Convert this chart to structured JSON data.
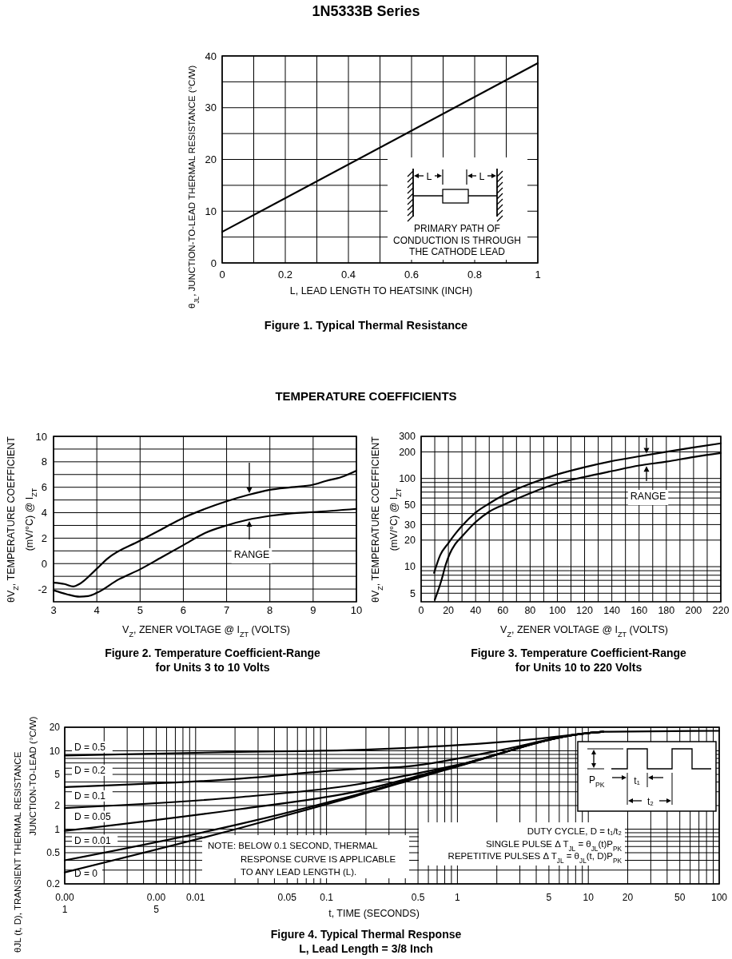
{
  "chart_data": [
    {
      "type": "line",
      "title": "1N5333B Series",
      "subtitle": "Figure 1. Typical Thermal Resistance",
      "xlabel": "L, LEAD LENGTH TO HEATSINK (INCH)",
      "ylabel": "θ$_{JL}$, JUNCTION-TO-LEAD THERMAL RESISTANCE (°C/W)",
      "xlim": [
        0,
        1
      ],
      "ylim": [
        0,
        40
      ],
      "xticks": [
        0,
        {
          "value": 0.1,
          "label": null
        },
        0.2,
        {
          "value": 0.3,
          "label": null
        },
        0.4,
        {
          "value": 0.5,
          "label": null
        },
        0.6,
        {
          "value": 0.7,
          "label": null
        },
        0.8,
        {
          "value": 0.9,
          "label": null
        },
        1
      ],
      "yticks": [
        0,
        {
          "value": 5,
          "label": null
        },
        10,
        {
          "value": 15,
          "label": null
        },
        20,
        {
          "value": 25,
          "label": null
        },
        30,
        {
          "value": 35,
          "label": null
        },
        40
      ],
      "grid": true,
      "series": [
        {
          "color": "#000000",
          "x": [
            0,
            1
          ],
          "values": [
            6,
            38.6
          ]
        }
      ],
      "annotations": [
        "L",
        "L",
        "PRIMARY PATH OF\nCONDUCTION IS THROUGH\nTHE CATHODE LEAD"
      ]
    },
    {
      "type": "line",
      "title": "TEMPERATURE COEFFICIENTS",
      "subtitle": "Figure 2. Temperature Coefficient-Range\nfor Units 3 to 10 Volts",
      "xlabel": "V$_{Z}$, ZENER VOLTAGE @ I$_{ZT}$ (VOLTS)",
      "ylabel": "θV$_{Z}$, TEMPERATURE COEFFICIENT\n(mV/°C) @ I$_{ZT}$",
      "xlim": [
        3,
        10
      ],
      "ylim": [
        -3,
        10
      ],
      "xticks": [
        3,
        4,
        5,
        6,
        7,
        8,
        9,
        10
      ],
      "yticks": [
        -2,
        {
          "value": -1,
          "label": null
        },
        0,
        {
          "value": 1,
          "label": null
        },
        2,
        {
          "value": 3,
          "label": null
        },
        4,
        {
          "value": 5,
          "label": null
        },
        6,
        {
          "value": 7,
          "label": null
        },
        8,
        {
          "value": 9,
          "label": null
        },
        10
      ],
      "grid": true,
      "series": [
        {
          "color": "#000000",
          "x": [
            3,
            3.25,
            3.46,
            3.6,
            4,
            4.25,
            5,
            5.5,
            6,
            6.5,
            7,
            7.5,
            8,
            8.5,
            9,
            9.3,
            9.65,
            10
          ],
          "values": [
            -1.5,
            -1.6,
            -1.8,
            -1.6,
            -0.4,
            0.4,
            1.8,
            2.7,
            3.6,
            4.3,
            4.9,
            5.4,
            5.8,
            6,
            6.2,
            6.5,
            6.8,
            7.3
          ]
        },
        {
          "color": "#000000",
          "x": [
            3,
            3.3,
            3.6,
            3.8,
            4,
            4.5,
            5,
            5.5,
            6,
            6.5,
            7,
            7.5,
            8,
            8.5,
            9,
            10
          ],
          "values": [
            -2.1,
            -2.4,
            -2.6,
            -2.55,
            -2.3,
            -1.25,
            -0.45,
            0.5,
            1.45,
            2.4,
            3,
            3.45,
            3.75,
            3.95,
            4.05,
            4.3
          ]
        }
      ],
      "annotations": [
        "RANGE"
      ]
    },
    {
      "type": "line",
      "subtitle": "Figure 3. Temperature Coefficient-Range\nfor Units 10 to 220 Volts",
      "xlabel": "V$_{Z}$, ZENER VOLTAGE @ I$_{ZT}$ (VOLTS)",
      "ylabel": "θV$_{Z}$, TEMPERATURE COEFFICIENT\n(mV/°C) @ I$_{ZT}$",
      "xlim": [
        0,
        220
      ],
      "ylim": [
        4,
        300
      ],
      "log": "y",
      "xticks": [
        0,
        {
          "value": 10,
          "label": null
        },
        20,
        {
          "value": 30,
          "label": null
        },
        40,
        {
          "value": 50,
          "label": null
        },
        60,
        {
          "value": 70,
          "label": null
        },
        80,
        {
          "value": 90,
          "label": null
        },
        100,
        {
          "value": 110,
          "label": null
        },
        120,
        {
          "value": 130,
          "label": null
        },
        140,
        {
          "value": 150,
          "label": null
        },
        160,
        {
          "value": 170,
          "label": null
        },
        180,
        {
          "value": 190,
          "label": null
        },
        200,
        {
          "value": 210,
          "label": null
        },
        220
      ],
      "yticks": [
        5,
        {
          "value": 6,
          "label": null
        },
        {
          "value": 7,
          "label": null
        },
        {
          "value": 8,
          "label": null
        },
        {
          "value": 9,
          "label": null
        },
        10,
        20,
        30,
        {
          "value": 40,
          "label": null
        },
        50,
        {
          "value": 60,
          "label": null
        },
        {
          "value": 70,
          "label": null
        },
        {
          "value": 80,
          "label": null
        },
        {
          "value": 90,
          "label": null
        },
        100,
        200,
        300
      ],
      "grid": true,
      "series": [
        {
          "color": "#000000",
          "x": [
            9.5,
            14,
            20,
            25,
            30,
            40,
            50,
            60,
            80,
            100,
            120,
            140,
            160,
            180,
            200,
            220
          ],
          "values": [
            8.5,
            13.5,
            18.5,
            23.5,
            29,
            41,
            52,
            64,
            87,
            111,
            134,
            157,
            178,
            200,
            225,
            250
          ]
        },
        {
          "color": "#000000",
          "x": [
            10,
            15,
            18,
            21,
            25,
            30,
            40,
            50,
            60,
            80,
            100,
            120,
            140,
            160,
            180,
            200,
            220
          ],
          "values": [
            4.2,
            7.1,
            10.5,
            14,
            18,
            22,
            32,
            42,
            50,
            68,
            88,
            104,
            121,
            140,
            155,
            175,
            194
          ]
        }
      ],
      "annotations": [
        "RANGE"
      ]
    },
    {
      "type": "line",
      "subtitle": "Figure 4. Typical Thermal Response\nL, Lead Length = 3/8 Inch",
      "xlabel": "t, TIME (SECONDS)",
      "ylabel": "θJL (t, D), TRANSIENT THERMAL RESISTANCE\nJUNCTION-TO-LEAD (°C/W)",
      "xlim": [
        0.001,
        100
      ],
      "ylim": [
        0.2,
        20
      ],
      "log": "xy",
      "xticks": [
        0.001,
        {
          "value": 0.002,
          "label": null
        },
        {
          "value": 0.003,
          "label": null
        },
        {
          "value": 0.004,
          "label": null
        },
        0.005,
        {
          "value": 0.006,
          "label": null
        },
        {
          "value": 0.007,
          "label": null
        },
        {
          "value": 0.008,
          "label": null
        },
        {
          "value": 0.009,
          "label": null
        },
        0.01,
        {
          "value": 0.02,
          "label": null
        },
        {
          "value": 0.03,
          "label": null
        },
        {
          "value": 0.04,
          "label": null
        },
        0.05,
        {
          "value": 0.06,
          "label": null
        },
        {
          "value": 0.07,
          "label": null
        },
        {
          "value": 0.08,
          "label": null
        },
        {
          "value": 0.09,
          "label": null
        },
        0.1,
        {
          "value": 0.2,
          "label": null
        },
        {
          "value": 0.3,
          "label": null
        },
        {
          "value": 0.4,
          "label": null
        },
        0.5,
        {
          "value": 0.6,
          "label": null
        },
        {
          "value": 0.7,
          "label": null
        },
        {
          "value": 0.8,
          "label": null
        },
        {
          "value": 0.9,
          "label": null
        },
        1,
        {
          "value": 2,
          "label": null
        },
        {
          "value": 3,
          "label": null
        },
        {
          "value": 4,
          "label": null
        },
        5,
        {
          "value": 6,
          "label": null
        },
        {
          "value": 7,
          "label": null
        },
        {
          "value": 8,
          "label": null
        },
        {
          "value": 9,
          "label": null
        },
        10,
        20,
        {
          "value": 30,
          "label": null
        },
        {
          "value": 40,
          "label": null
        },
        50,
        {
          "value": 60,
          "label": null
        },
        {
          "value": 70,
          "label": null
        },
        {
          "value": 80,
          "label": null
        },
        {
          "value": 90,
          "label": null
        },
        100
      ],
      "yticks": [
        0.2,
        {
          "value": 0.3,
          "label": null
        },
        {
          "value": 0.4,
          "label": null
        },
        0.5,
        {
          "value": 0.6,
          "label": null
        },
        {
          "value": 0.7,
          "label": null
        },
        {
          "value": 0.8,
          "label": null
        },
        {
          "value": 0.9,
          "label": null
        },
        1,
        2,
        {
          "value": 3,
          "label": null
        },
        {
          "value": 4,
          "label": null
        },
        5,
        {
          "value": 6,
          "label": null
        },
        {
          "value": 7,
          "label": null
        },
        {
          "value": 8,
          "label": null
        },
        {
          "value": 9,
          "label": null
        },
        10,
        20
      ],
      "grid": true,
      "series": [
        {
          "name": "D = 0.5",
          "color": "#000000",
          "x": [
            0.001,
            0.0217,
            0.15,
            1,
            4,
            9,
            13,
            100
          ],
          "values": [
            8.7,
            9.7,
            10.2,
            11.8,
            14.2,
            16.5,
            17.5,
            18
          ]
        },
        {
          "name": "D = 0.2",
          "color": "#000000",
          "x": [
            0.001,
            0.0217,
            0.15,
            0.41,
            1.9,
            9,
            13
          ],
          "values": [
            3.45,
            4.4,
            5.8,
            6.3,
            9.8,
            16.5,
            17.5
          ]
        },
        {
          "name": "D = 0.1",
          "color": "#000000",
          "x": [
            0.001,
            0.0217,
            0.15,
            1,
            9,
            13
          ],
          "values": [
            1.86,
            2.56,
            3.6,
            6.6,
            16.5,
            17.5
          ]
        },
        {
          "name": "D = 0.05",
          "color": "#000000",
          "x": [
            0.001,
            0.0217,
            0.15,
            1,
            9,
            13
          ],
          "values": [
            0.95,
            1.8,
            2.9,
            6.5,
            16.5,
            17.5
          ]
        },
        {
          "name": "D = 0.01",
          "color": "#000000",
          "x": [
            0.001,
            0.0217,
            0.15,
            1,
            9,
            13
          ],
          "values": [
            0.4,
            1.16,
            2.6,
            6.4,
            16.5,
            17.5
          ]
        },
        {
          "name": "D = 0",
          "color": "#000000",
          "x": [
            0.001,
            0.0217,
            0.15,
            1,
            9,
            13
          ],
          "values": [
            0.28,
            1.03,
            2.5,
            6.3,
            16.5,
            17.5
          ]
        }
      ],
      "annotations": [
        "NOTE: BELOW 0.1 SECOND, THERMAL\nRESPONSE CURVE IS APPLICABLE\nTO ANY LEAD LENGTH (L).",
        "DUTY CYCLE, D = t₁/t₂\nSINGLE PULSE Δ T$_{JL}$ = θ$_{JL}$(t)P$_{PK}$\nREPETITIVE PULSES  Δ T$_{JL}$ = θ$_{JL}$(t, D)P$_{PK}$",
        "P$_{PK}$",
        "t₁",
        "t₂"
      ]
    }
  ]
}
